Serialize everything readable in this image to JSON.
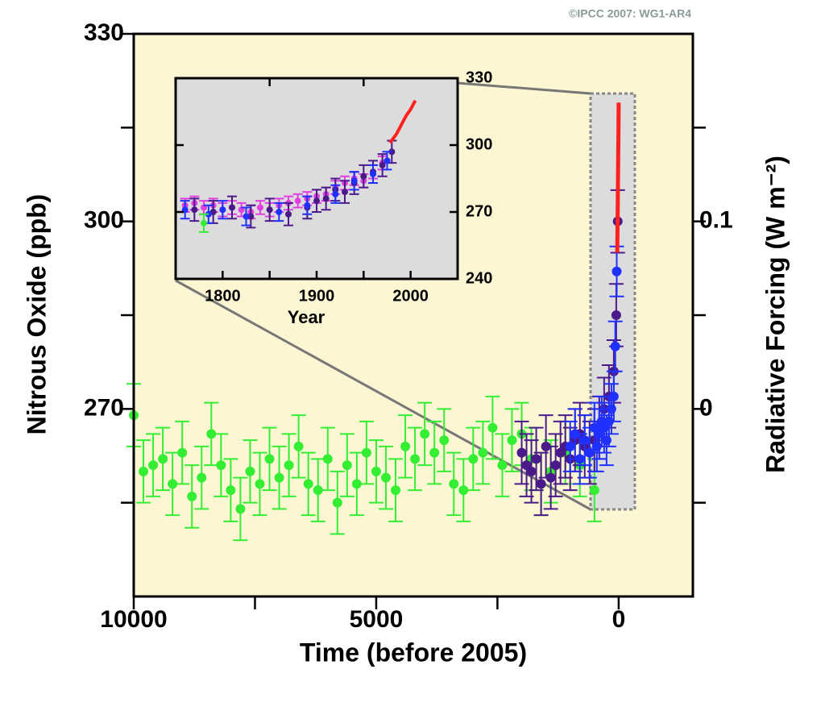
{
  "chart_data": [
    {
      "type": "scatter",
      "source": "©IPCC 2007: WG1-AR4",
      "xlabel": "Time (before 2005)",
      "ylabel": "Nitrous Oxide (ppb)",
      "y2label": "Radiative Forcing (W m⁻²)",
      "background": "#fdf6d3",
      "xlim": [
        10000,
        -1530
      ],
      "xticks": [
        10000,
        5000,
        0
      ],
      "xminorticks": [
        7500,
        2500
      ],
      "ylim": [
        240,
        330
      ],
      "yticks": [
        330,
        300,
        270
      ],
      "yminorticks": [
        315,
        285,
        255
      ],
      "y2lim": [
        -0.1,
        0.2
      ],
      "y2ticks": [
        0.1,
        0
      ],
      "y2minorticks": [
        0.15,
        0.05,
        -0.05
      ],
      "series": [
        {
          "color": "#33ee33",
          "error": 5,
          "x": [
            10000,
            9800,
            9600,
            9400,
            9200,
            9000,
            8800,
            8600,
            8400,
            8200,
            8000,
            7800,
            7600,
            7400,
            7200,
            7000,
            6800,
            6600,
            6400,
            6200,
            6000,
            5800,
            5600,
            5400,
            5200,
            5000,
            4800,
            4600,
            4400,
            4200,
            4000,
            3800,
            3600,
            3400,
            3200,
            3000,
            2800,
            2600,
            2400,
            2200,
            2000,
            1800,
            1600,
            1400,
            1100,
            800,
            500
          ],
          "values": [
            269,
            260,
            261,
            262,
            258,
            263,
            256,
            259,
            266,
            261,
            257,
            254,
            260,
            258,
            262,
            259,
            261,
            264,
            258,
            257,
            262,
            255,
            261,
            258,
            263,
            260,
            259,
            257,
            264,
            262,
            266,
            263,
            265,
            258,
            257,
            262,
            263,
            267,
            261,
            265,
            266,
            262,
            258,
            260,
            263,
            261,
            257
          ]
        },
        {
          "color": "#4b1a8a",
          "error": 5,
          "x": [
            2000,
            1900,
            1800,
            1700,
            1600,
            1500,
            1400,
            1300,
            1200,
            1100,
            1000,
            900,
            800,
            700,
            600,
            500,
            400,
            300,
            200,
            100,
            50,
            20
          ],
          "values": [
            263,
            261,
            260,
            262,
            258,
            264,
            259,
            261,
            263,
            264,
            262,
            265,
            266,
            264,
            263,
            265,
            267,
            270,
            272,
            276,
            285,
            300
          ]
        },
        {
          "color": "#2030ff",
          "error": 4,
          "x": [
            1000,
            900,
            800,
            700,
            600,
            500,
            450,
            400,
            350,
            300,
            250,
            200,
            150,
            100,
            70,
            40
          ],
          "values": [
            264,
            266,
            262,
            265,
            263,
            267,
            264,
            266,
            268,
            267,
            265,
            268,
            270,
            272,
            280,
            292
          ]
        },
        {
          "color": "#ff2020",
          "line": true,
          "x": [
            30,
            25,
            20,
            15,
            10,
            5,
            0
          ],
          "values": [
            295,
            298,
            302,
            306,
            310,
            314,
            319
          ]
        }
      ]
    },
    {
      "type": "scatter",
      "xlabel": "Year",
      "background": "#dcdcdc",
      "xlim": [
        1750,
        2050
      ],
      "xticks": [
        1800,
        1900,
        2000
      ],
      "xminorticks": [
        1850,
        1950
      ],
      "ylim": [
        240,
        330
      ],
      "yticks": [
        330,
        300,
        270,
        240
      ],
      "series": [
        {
          "color": "#e040e0",
          "error": 3,
          "x": [
            1760,
            1770,
            1780,
            1790,
            1800,
            1810,
            1820,
            1830,
            1840,
            1850,
            1860,
            1870,
            1880,
            1890,
            1900,
            1910,
            1920,
            1930,
            1940,
            1950,
            1960,
            1970
          ],
          "values": [
            273,
            274,
            272,
            273,
            271,
            272,
            271,
            270,
            272,
            271,
            273,
            274,
            275,
            276,
            277,
            278,
            281,
            283,
            285,
            284,
            288,
            292
          ]
        },
        {
          "color": "#4b1a8a",
          "error": 5,
          "x": [
            1770,
            1790,
            1810,
            1830,
            1850,
            1870,
            1890,
            1900,
            1910,
            1920,
            1930,
            1940,
            1950,
            1960,
            1970,
            1980
          ],
          "values": [
            271,
            270,
            272,
            268,
            271,
            269,
            272,
            275,
            276,
            280,
            279,
            283,
            286,
            288,
            291,
            297
          ]
        },
        {
          "color": "#2030ff",
          "error": 4,
          "x": [
            1760,
            1785,
            1800,
            1825,
            1860,
            1890,
            1920,
            1940,
            1960,
            1975
          ],
          "values": [
            271,
            269,
            271,
            268,
            270,
            273,
            278,
            284,
            287,
            293
          ]
        },
        {
          "color": "#33ee33",
          "error": 4,
          "x": [
            1780
          ],
          "values": [
            265
          ]
        },
        {
          "color": "#ff2020",
          "line": true,
          "x": [
            1978,
            1985,
            1990,
            1995,
            2000,
            2005
          ],
          "values": [
            301,
            305,
            309,
            313,
            316,
            320
          ]
        }
      ]
    }
  ]
}
